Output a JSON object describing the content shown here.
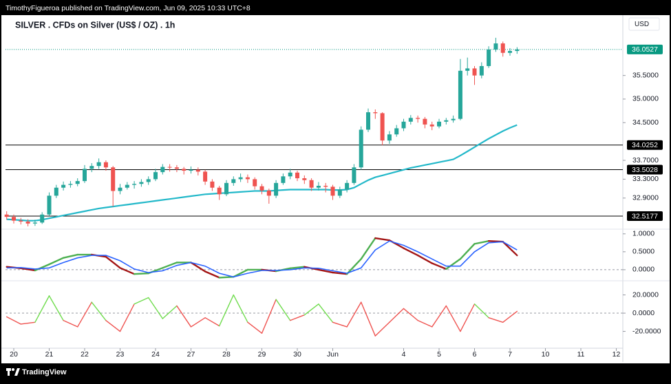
{
  "header": {
    "text": "TimothyFigueroa published on TradingView.com, Jun 09, 2025 10:33 UTC+8"
  },
  "footer": {
    "brand": "TradingView"
  },
  "chart_data": [
    {
      "type": "candlestick",
      "title": "SILVER . CFDs on Silver (US$ / OZ) . 1h",
      "currency": "USD",
      "up_color": "#26a69a",
      "down_color": "#ef5350",
      "x": [
        -0.2,
        0,
        0.2,
        0.4,
        0.6,
        0.8,
        1,
        1.2,
        1.4,
        1.6,
        1.8,
        2,
        2.2,
        2.4,
        2.6,
        2.8,
        3,
        3.2,
        3.4,
        3.6,
        3.8,
        4,
        4.2,
        4.4,
        4.6,
        4.8,
        5,
        5.2,
        5.4,
        5.6,
        5.8,
        6,
        6.2,
        6.4,
        6.6,
        6.8,
        7,
        7.2,
        7.4,
        7.6,
        7.8,
        8,
        8.2,
        8.4,
        8.6,
        8.8,
        9,
        9.2,
        9.4,
        9.6,
        9.8,
        10,
        10.2,
        10.4,
        10.6,
        10.8,
        11,
        11.2,
        11.4,
        11.6,
        11.8,
        12,
        12.2,
        12.4,
        12.6,
        12.8,
        13,
        13.2,
        13.4,
        13.6,
        13.8,
        14,
        14.2
      ],
      "open": [
        32.55,
        32.5,
        32.42,
        32.4,
        32.36,
        32.38,
        32.55,
        32.95,
        33.12,
        33.18,
        33.2,
        33.26,
        33.52,
        33.58,
        33.66,
        33.55,
        33.05,
        33.12,
        33.18,
        33.2,
        33.24,
        33.3,
        33.45,
        33.56,
        33.55,
        33.52,
        33.48,
        33.5,
        33.46,
        33.25,
        33.12,
        32.98,
        33.22,
        33.3,
        33.34,
        33.3,
        33.15,
        33.06,
        32.95,
        33.22,
        33.36,
        33.44,
        33.32,
        33.28,
        33.12,
        33.16,
        33.14,
        32.95,
        33.08,
        33.22,
        33.55,
        34.35,
        34.72,
        34.7,
        34.12,
        34.25,
        34.38,
        34.52,
        34.6,
        34.58,
        34.46,
        34.42,
        34.52,
        34.55,
        34.58,
        35.6,
        35.65,
        35.5,
        35.7,
        36.05,
        36.18,
        35.98,
        36.02
      ],
      "high": [
        32.62,
        32.55,
        32.48,
        32.45,
        32.44,
        32.6,
        33.02,
        33.18,
        33.25,
        33.26,
        33.32,
        33.6,
        33.64,
        33.74,
        33.7,
        33.58,
        33.2,
        33.24,
        33.26,
        33.3,
        33.36,
        33.52,
        33.62,
        33.62,
        33.6,
        33.56,
        33.57,
        33.55,
        33.5,
        33.3,
        33.16,
        33.28,
        33.36,
        33.42,
        33.4,
        33.34,
        33.2,
        33.1,
        33.28,
        33.42,
        33.52,
        33.48,
        33.38,
        33.32,
        33.24,
        33.22,
        33.18,
        33.14,
        33.28,
        33.62,
        34.42,
        34.8,
        34.78,
        34.72,
        34.32,
        34.45,
        34.58,
        34.66,
        34.65,
        34.62,
        34.52,
        34.58,
        34.6,
        34.65,
        35.85,
        35.88,
        35.7,
        35.78,
        36.12,
        36.3,
        36.22,
        36.08,
        36.1
      ],
      "low": [
        32.44,
        32.36,
        32.34,
        32.3,
        32.31,
        32.35,
        32.52,
        32.9,
        33.06,
        33.12,
        33.15,
        33.22,
        33.45,
        33.52,
        33.48,
        32.72,
        32.98,
        33.08,
        33.1,
        33.14,
        33.18,
        33.26,
        33.4,
        33.46,
        33.45,
        33.4,
        33.42,
        33.38,
        33.18,
        33.05,
        32.86,
        32.94,
        33.16,
        33.24,
        33.22,
        33.08,
        32.98,
        32.78,
        32.9,
        33.18,
        33.3,
        33.26,
        33.2,
        33.05,
        33.06,
        33.02,
        32.86,
        32.9,
        33.02,
        33.18,
        33.5,
        34.3,
        34.58,
        34.02,
        34.05,
        34.2,
        34.32,
        34.46,
        34.5,
        34.38,
        34.34,
        34.38,
        34.46,
        34.5,
        34.55,
        35.5,
        35.3,
        35.44,
        35.66,
        36.0,
        35.9,
        35.92,
        35.96
      ],
      "close": [
        32.5,
        32.42,
        32.4,
        32.36,
        32.38,
        32.55,
        32.95,
        33.12,
        33.18,
        33.2,
        33.26,
        33.52,
        33.58,
        33.66,
        33.55,
        33.05,
        33.12,
        33.18,
        33.2,
        33.24,
        33.3,
        33.45,
        33.56,
        33.55,
        33.52,
        33.48,
        33.5,
        33.46,
        33.25,
        33.12,
        32.98,
        33.22,
        33.3,
        33.34,
        33.3,
        33.15,
        33.06,
        32.95,
        33.22,
        33.36,
        33.44,
        33.32,
        33.28,
        33.12,
        33.16,
        33.14,
        32.95,
        33.08,
        33.22,
        33.55,
        34.35,
        34.72,
        34.7,
        34.12,
        34.25,
        34.38,
        34.52,
        34.6,
        34.58,
        34.46,
        34.42,
        34.52,
        34.55,
        34.58,
        35.6,
        35.65,
        35.5,
        35.7,
        36.05,
        36.18,
        35.98,
        36.02,
        36.05
      ],
      "moving_average": {
        "color": "#22b8c9",
        "values": [
          32.45,
          32.44,
          32.43,
          32.42,
          32.42,
          32.44,
          32.47,
          32.5,
          32.53,
          32.56,
          32.59,
          32.62,
          32.65,
          32.68,
          32.7,
          32.72,
          32.74,
          32.76,
          32.78,
          32.8,
          32.82,
          32.84,
          32.86,
          32.88,
          32.9,
          32.92,
          32.94,
          32.96,
          32.98,
          32.99,
          33.0,
          33.01,
          33.02,
          33.03,
          33.04,
          33.05,
          33.05,
          33.05,
          33.06,
          33.07,
          33.08,
          33.08,
          33.08,
          33.08,
          33.08,
          33.08,
          33.07,
          33.07,
          33.08,
          33.12,
          33.2,
          33.28,
          33.34,
          33.38,
          33.42,
          33.46,
          33.5,
          33.54,
          33.57,
          33.6,
          33.63,
          33.66,
          33.69,
          33.72,
          33.8,
          33.89,
          33.98,
          34.07,
          34.16,
          34.24,
          34.32,
          34.39,
          34.45
        ]
      },
      "levels": [
        {
          "value": 34.0252,
          "color": "#000000"
        },
        {
          "value": 33.5028,
          "color": "#000000"
        },
        {
          "value": 32.5177,
          "color": "#000000"
        }
      ],
      "last_price": {
        "value": 36.0527,
        "color": "#089981"
      },
      "xlim": [
        -0.233,
        17.184
      ],
      "xticks": [
        {
          "value": 0,
          "label": "20"
        },
        {
          "value": 1,
          "label": "21"
        },
        {
          "value": 2,
          "label": "22"
        },
        {
          "value": 3,
          "label": "23"
        },
        {
          "value": 4,
          "label": "24"
        },
        {
          "value": 5,
          "label": "27"
        },
        {
          "value": 6,
          "label": "28"
        },
        {
          "value": 7,
          "label": "29"
        },
        {
          "value": 8,
          "label": "30"
        },
        {
          "value": 9,
          "label": "Jun"
        },
        {
          "value": 11,
          "label": "4"
        },
        {
          "value": 12,
          "label": "5"
        },
        {
          "value": 13,
          "label": "6"
        },
        {
          "value": 14,
          "label": "7"
        },
        {
          "value": 15,
          "label": "10"
        },
        {
          "value": 16,
          "label": "11"
        },
        {
          "value": 17,
          "label": "12"
        }
      ],
      "ylim": [
        32.24,
        36.78
      ],
      "yticks": [
        {
          "value": 35.5,
          "label": "35.5000"
        },
        {
          "value": 35,
          "label": "35.0000"
        },
        {
          "value": 34.5,
          "label": "34.5000"
        },
        {
          "value": 33.7,
          "label": "33.7000"
        },
        {
          "value": 33.3,
          "label": "33.3000"
        },
        {
          "value": 32.9,
          "label": "32.9000"
        }
      ]
    },
    {
      "type": "line",
      "color_by": "slope",
      "zero_line": true,
      "x": [
        -0.2,
        0.2,
        0.6,
        1,
        1.4,
        1.8,
        2.2,
        2.6,
        3,
        3.4,
        3.8,
        4.2,
        4.6,
        5,
        5.4,
        5.8,
        6.2,
        6.6,
        7,
        7.4,
        7.8,
        8.2,
        8.6,
        9,
        9.4,
        9.8,
        10.2,
        10.6,
        11,
        11.4,
        11.8,
        12.2,
        12.6,
        13,
        13.4,
        13.8,
        14.2
      ],
      "series": [
        {
          "up_color": "#4caf50",
          "down_color": "#a31515",
          "values": [
            0.08,
            0.04,
            -0.02,
            0.15,
            0.33,
            0.42,
            0.42,
            0.36,
            0.05,
            -0.12,
            -0.1,
            0.05,
            0.2,
            0.2,
            -0.05,
            -0.22,
            -0.2,
            0.0,
            0.0,
            -0.04,
            0.04,
            0.08,
            0.0,
            -0.08,
            -0.12,
            0.3,
            0.88,
            0.82,
            0.6,
            0.4,
            0.18,
            0.02,
            0.3,
            0.72,
            0.8,
            0.78,
            0.4
          ]
        },
        {
          "color": "#2962ff",
          "values": [
            0.05,
            0.06,
            0.02,
            0.05,
            0.2,
            0.33,
            0.4,
            0.4,
            0.25,
            0.02,
            -0.08,
            -0.03,
            0.12,
            0.2,
            0.1,
            -0.1,
            -0.2,
            -0.1,
            -0.02,
            -0.02,
            0.0,
            0.05,
            0.04,
            -0.03,
            -0.1,
            0.05,
            0.55,
            0.8,
            0.68,
            0.5,
            0.3,
            0.1,
            0.1,
            0.5,
            0.75,
            0.78,
            0.55
          ]
        }
      ],
      "xlim": [
        -0.233,
        17.184
      ],
      "ylim": [
        -0.27,
        1.13
      ],
      "yticks": [
        {
          "value": 1,
          "label": "1.0000"
        },
        {
          "value": 0.5,
          "label": "0.5000"
        },
        {
          "value": 0,
          "label": "0.0000"
        }
      ]
    },
    {
      "type": "line",
      "color_by": "sign",
      "zero_line": true,
      "x": [
        -0.2,
        0.2,
        0.6,
        1,
        1.4,
        1.8,
        2.2,
        2.6,
        3,
        3.4,
        3.8,
        4.2,
        4.6,
        5,
        5.4,
        5.8,
        6.2,
        6.6,
        7,
        7.4,
        7.8,
        8.2,
        8.6,
        9,
        9.4,
        9.8,
        10.2,
        10.6,
        11,
        11.4,
        11.8,
        12.2,
        12.6,
        13,
        13.4,
        13.8,
        14.2
      ],
      "series": [
        {
          "up_color": "#6fdc4d",
          "down_color": "#ef5350",
          "values": [
            -4,
            -12,
            -10,
            19,
            -8,
            -15,
            12,
            -8,
            -20,
            10,
            17,
            -6,
            8,
            -15,
            -5,
            -14,
            20,
            -10,
            -22,
            15,
            -8,
            -2,
            10,
            -10,
            -15,
            12,
            -25,
            -10,
            5,
            -8,
            -15,
            8,
            -20,
            10,
            -5,
            -10,
            2
          ]
        }
      ],
      "xlim": [
        -0.233,
        17.184
      ],
      "ylim": [
        -37.7,
        34
      ],
      "yticks": [
        {
          "value": 20,
          "label": "20.0000"
        },
        {
          "value": 0,
          "label": "0.0000"
        },
        {
          "value": -20,
          "label": "-20.0000"
        }
      ]
    }
  ]
}
